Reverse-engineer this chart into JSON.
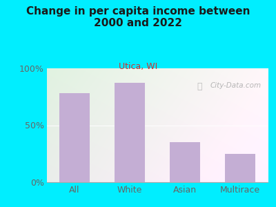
{
  "title": "Change in per capita income between\n2000 and 2022",
  "subtitle": "Utica, WI",
  "categories": [
    "All",
    "White",
    "Asian",
    "Multirace"
  ],
  "values": [
    78,
    87,
    35,
    25
  ],
  "bar_color": "#c4aed4",
  "background_outer": "#00eeff",
  "title_color": "#1a1a1a",
  "subtitle_color": "#cc3333",
  "tick_color": "#666666",
  "watermark": "City-Data.com",
  "ylim": [
    0,
    100
  ],
  "yticks": [
    0,
    50,
    100
  ],
  "ytick_labels": [
    "0%",
    "50%",
    "100%"
  ],
  "title_fontsize": 11,
  "subtitle_fontsize": 9,
  "tick_fontsize": 9
}
